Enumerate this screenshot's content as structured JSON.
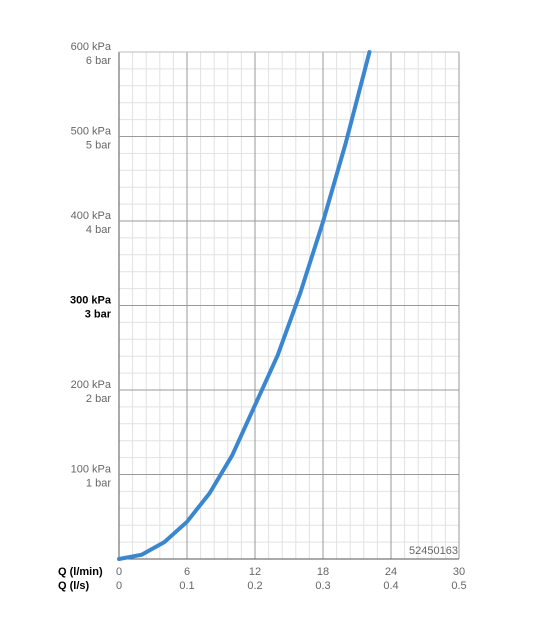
{
  "chart_data": {
    "type": "line",
    "x_label": "Q (l/min)",
    "x2_label": "Q (l/s)",
    "x": [
      0,
      2,
      4,
      6,
      8,
      10,
      12,
      14,
      16,
      18,
      20,
      22.1
    ],
    "series": [
      {
        "color": "#3a87d0",
        "values": [
          0,
          5,
          20,
          44,
          78,
          123,
          182,
          241,
          315,
          399,
          492,
          600
        ]
      }
    ],
    "xlim": [
      0,
      30
    ],
    "xticks": [
      0,
      6,
      12,
      18,
      24,
      30
    ],
    "x2lim": [
      0,
      0.5
    ],
    "x2ticks": [
      0,
      0.1,
      0.2,
      0.3,
      0.4,
      0.5
    ],
    "ylim": [
      0,
      600
    ],
    "yticks": [
      {
        "value": 100,
        "label": "100 kPa"
      },
      {
        "value": 200,
        "label": "200 kPa"
      },
      {
        "value": 300,
        "label": "300 kPa"
      },
      {
        "value": 400,
        "label": "400 kPa"
      },
      {
        "value": 500,
        "label": "500 kPa"
      },
      {
        "value": 600,
        "label": "600 kPa"
      }
    ],
    "y2lim": [
      0,
      6
    ],
    "y2ticks": [
      {
        "value": 1,
        "label": "1 bar"
      },
      {
        "value": 2,
        "label": "2 bar"
      },
      {
        "value": 3,
        "label": "3 bar"
      },
      {
        "value": 4,
        "label": "4 bar"
      },
      {
        "value": 5,
        "label": "5 bar"
      },
      {
        "value": 6,
        "label": "6 bar"
      }
    ],
    "highlight_ytick": 300,
    "minor_divisions": 5,
    "grid": true,
    "annotation": "52450163"
  }
}
